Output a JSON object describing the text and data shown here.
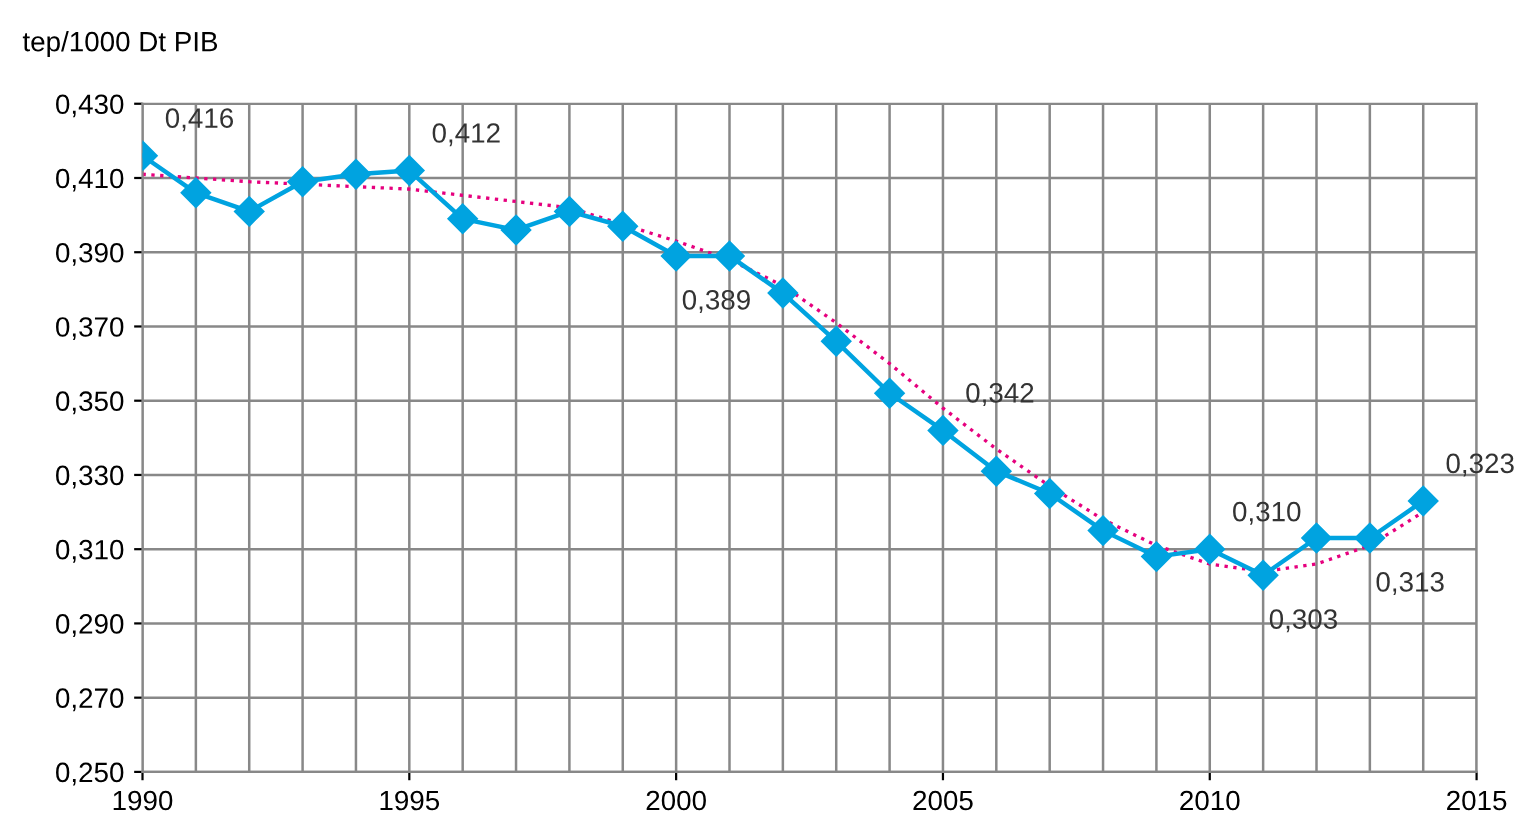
{
  "chart_data": {
    "type": "line",
    "ylabel": "tep/1000 Dt PIB",
    "x": [
      1990,
      1991,
      1992,
      1993,
      1994,
      1995,
      1996,
      1997,
      1998,
      1999,
      2000,
      2001,
      2002,
      2003,
      2004,
      2005,
      2006,
      2007,
      2008,
      2009,
      2010,
      2011,
      2012,
      2013,
      2014
    ],
    "series": [
      {
        "color": "#00a3e0",
        "marker": "diamond",
        "line_style": "solid",
        "values": [
          0.416,
          0.406,
          0.401,
          0.409,
          0.411,
          0.412,
          0.399,
          0.396,
          0.401,
          0.397,
          0.389,
          0.389,
          0.379,
          0.366,
          0.352,
          0.342,
          0.331,
          0.325,
          0.315,
          0.308,
          0.31,
          0.303,
          0.313,
          0.313,
          0.323
        ],
        "value_labels": [
          "0,416",
          null,
          null,
          null,
          null,
          "0,412",
          null,
          null,
          null,
          null,
          "0,389",
          null,
          null,
          null,
          null,
          "0,342",
          null,
          null,
          null,
          null,
          "0,310",
          "0,303",
          null,
          "0,313",
          "0,323"
        ]
      },
      {
        "type": "line",
        "color": "#e6007e",
        "marker": "none",
        "line_style": "dotted",
        "x": [
          1990,
          1992,
          1995,
          1998,
          2000,
          2001,
          2002,
          2003,
          2004,
          2005,
          2006,
          2007,
          2008,
          2009,
          2010,
          2011,
          2012,
          2013,
          2014
        ],
        "values": [
          0.411,
          0.409,
          0.407,
          0.402,
          0.393,
          0.388,
          0.381,
          0.371,
          0.36,
          0.348,
          0.337,
          0.327,
          0.318,
          0.311,
          0.306,
          0.304,
          0.306,
          0.311,
          0.32
        ]
      }
    ],
    "xlim": [
      1990,
      2015
    ],
    "xticks": [
      1990,
      1995,
      2000,
      2005,
      2010,
      2015
    ],
    "ylim": [
      0.25,
      0.43
    ],
    "yticks": [
      {
        "value": 0.25,
        "label": "0,250"
      },
      {
        "value": 0.27,
        "label": "0,270"
      },
      {
        "value": 0.29,
        "label": "0,290"
      },
      {
        "value": 0.31,
        "label": "0,310"
      },
      {
        "value": 0.33,
        "label": "0,330"
      },
      {
        "value": 0.35,
        "label": "0,350"
      },
      {
        "value": 0.37,
        "label": "0,370"
      },
      {
        "value": 0.39,
        "label": "0,390"
      },
      {
        "value": 0.41,
        "label": "0,410"
      },
      {
        "value": 0.43,
        "label": "0,430"
      }
    ],
    "grid": true,
    "legend": false
  }
}
